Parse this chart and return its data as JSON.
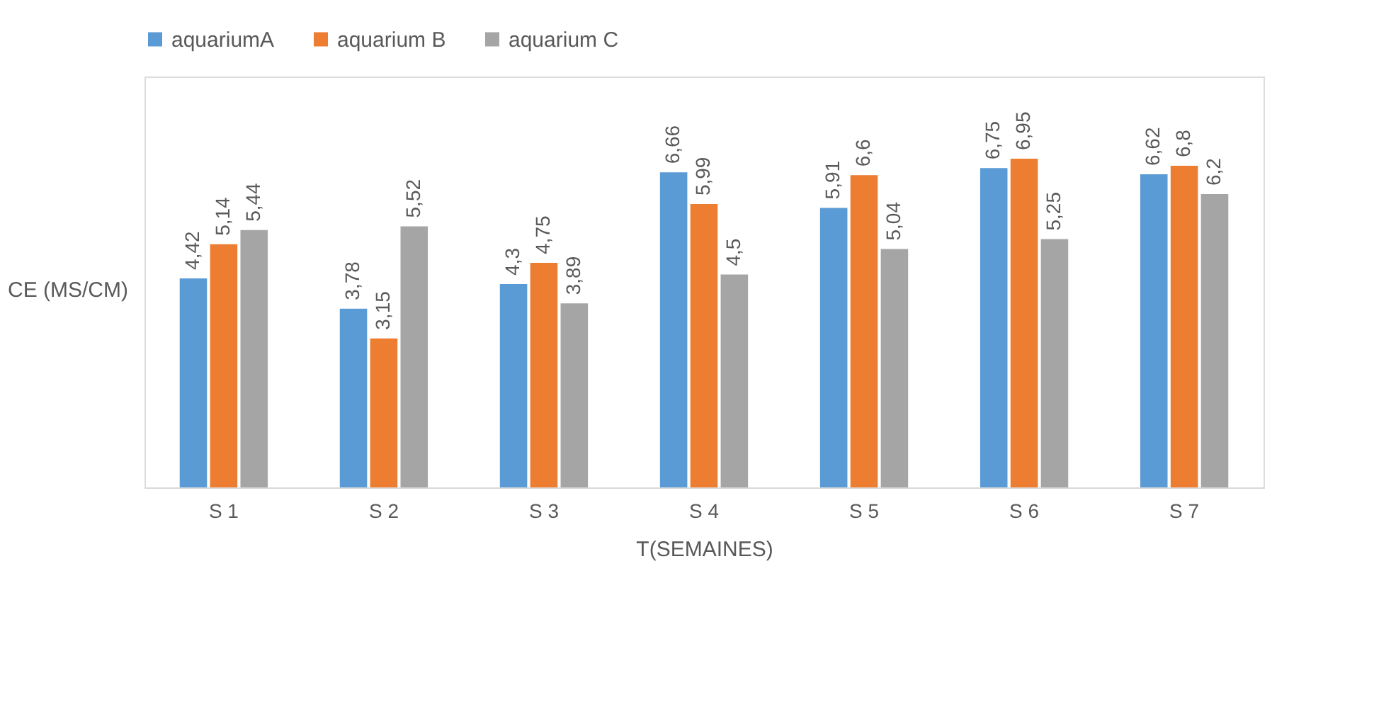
{
  "chart_data": {
    "type": "bar",
    "xlabel": "T(SEMAINES)",
    "ylabel": "CE (MS/CM)",
    "categories": [
      "S 1",
      "S 2",
      "S 3",
      "S 4",
      "S 5",
      "S 6",
      "S 7"
    ],
    "series": [
      {
        "name": "aquariumA",
        "color": "#5b9bd5",
        "values": [
          4.42,
          3.78,
          4.3,
          6.66,
          5.91,
          6.75,
          6.62
        ],
        "value_labels": [
          "4,42",
          "3,78",
          "4,3",
          "6,66",
          "5,91",
          "6,75",
          "6,62"
        ]
      },
      {
        "name": "aquarium B",
        "color": "#ed7d31",
        "values": [
          5.14,
          3.15,
          4.75,
          5.99,
          6.6,
          6.95,
          6.8
        ],
        "value_labels": [
          "5,14",
          "3,15",
          "4,75",
          "5,99",
          "6,6",
          "6,95",
          "6,8"
        ]
      },
      {
        "name": "aquarium C",
        "color": "#a5a5a5",
        "values": [
          5.44,
          5.52,
          3.89,
          4.5,
          5.04,
          5.25,
          6.2
        ],
        "value_labels": [
          "5,44",
          "5,52",
          "3,89",
          "4,5",
          "5,04",
          "5,25",
          "6,2"
        ]
      }
    ],
    "legend": "top",
    "grid": false,
    "tick_labels": "x"
  }
}
